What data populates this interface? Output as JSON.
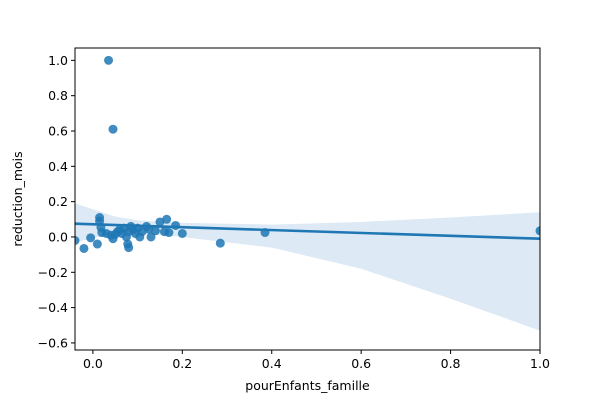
{
  "chart_data": {
    "type": "scatter",
    "title": "",
    "xlabel": "pourEnfants_famille",
    "ylabel": "reduction_mois",
    "xlim": [
      -0.04,
      1.0
    ],
    "ylim": [
      -0.64,
      1.07
    ],
    "xticks": [
      {
        "value": 0.0,
        "label": "0.0"
      },
      {
        "value": 0.2,
        "label": "0.2"
      },
      {
        "value": 0.4,
        "label": "0.4"
      },
      {
        "value": 0.6,
        "label": "0.6"
      },
      {
        "value": 0.8,
        "label": "0.8"
      },
      {
        "value": 1.0,
        "label": "1.0"
      }
    ],
    "yticks": [
      {
        "value": -0.6,
        "label": "−0.6"
      },
      {
        "value": -0.4,
        "label": "−0.4"
      },
      {
        "value": -0.2,
        "label": "−0.2"
      },
      {
        "value": 0.0,
        "label": "0.0"
      },
      {
        "value": 0.2,
        "label": "0.2"
      },
      {
        "value": 0.4,
        "label": "0.4"
      },
      {
        "value": 0.6,
        "label": "0.6"
      },
      {
        "value": 0.8,
        "label": "0.8"
      },
      {
        "value": 1.0,
        "label": "1.0"
      }
    ],
    "grid": false,
    "legend": "none",
    "point_color": "#1f77b4",
    "line_color": "#1f77b4",
    "band_color": "#c6dbef",
    "points": [
      {
        "x": -0.04,
        "y": -0.02
      },
      {
        "x": -0.02,
        "y": -0.065
      },
      {
        "x": -0.005,
        "y": -0.005
      },
      {
        "x": 0.01,
        "y": -0.04
      },
      {
        "x": 0.015,
        "y": 0.11
      },
      {
        "x": 0.015,
        "y": 0.09
      },
      {
        "x": 0.018,
        "y": 0.055
      },
      {
        "x": 0.02,
        "y": 0.025
      },
      {
        "x": 0.03,
        "y": 0.02
      },
      {
        "x": 0.035,
        "y": 1.0
      },
      {
        "x": 0.04,
        "y": 0.01
      },
      {
        "x": 0.045,
        "y": 0.61
      },
      {
        "x": 0.045,
        "y": -0.01
      },
      {
        "x": 0.05,
        "y": 0.015
      },
      {
        "x": 0.055,
        "y": 0.03
      },
      {
        "x": 0.06,
        "y": 0.04
      },
      {
        "x": 0.065,
        "y": 0.02
      },
      {
        "x": 0.07,
        "y": 0.05
      },
      {
        "x": 0.075,
        "y": 0.0
      },
      {
        "x": 0.078,
        "y": -0.04
      },
      {
        "x": 0.08,
        "y": -0.06
      },
      {
        "x": 0.08,
        "y": 0.03
      },
      {
        "x": 0.085,
        "y": 0.06
      },
      {
        "x": 0.09,
        "y": 0.04
      },
      {
        "x": 0.095,
        "y": 0.02
      },
      {
        "x": 0.1,
        "y": 0.05
      },
      {
        "x": 0.105,
        "y": 0.0
      },
      {
        "x": 0.11,
        "y": 0.03
      },
      {
        "x": 0.12,
        "y": 0.06
      },
      {
        "x": 0.125,
        "y": 0.045
      },
      {
        "x": 0.13,
        "y": 0.0
      },
      {
        "x": 0.14,
        "y": 0.035
      },
      {
        "x": 0.15,
        "y": 0.085
      },
      {
        "x": 0.16,
        "y": 0.03
      },
      {
        "x": 0.165,
        "y": 0.1
      },
      {
        "x": 0.17,
        "y": 0.025
      },
      {
        "x": 0.185,
        "y": 0.065
      },
      {
        "x": 0.2,
        "y": 0.02
      },
      {
        "x": 0.285,
        "y": -0.035
      },
      {
        "x": 0.385,
        "y": 0.025
      },
      {
        "x": 1.0,
        "y": 0.035
      }
    ],
    "regression_line": [
      {
        "x": -0.04,
        "y": 0.075
      },
      {
        "x": 1.0,
        "y": -0.01
      }
    ],
    "confidence_band": {
      "upper": [
        {
          "x": -0.04,
          "y": 0.19
        },
        {
          "x": 0.05,
          "y": 0.115
        },
        {
          "x": 0.1,
          "y": 0.095
        },
        {
          "x": 0.2,
          "y": 0.08
        },
        {
          "x": 0.4,
          "y": 0.07
        },
        {
          "x": 0.6,
          "y": 0.085
        },
        {
          "x": 0.8,
          "y": 0.11
        },
        {
          "x": 1.0,
          "y": 0.14
        }
      ],
      "lower": [
        {
          "x": -0.04,
          "y": -0.03
        },
        {
          "x": 0.05,
          "y": 0.02
        },
        {
          "x": 0.1,
          "y": 0.025
        },
        {
          "x": 0.2,
          "y": 0.0
        },
        {
          "x": 0.4,
          "y": -0.06
        },
        {
          "x": 0.6,
          "y": -0.18
        },
        {
          "x": 0.8,
          "y": -0.35
        },
        {
          "x": 1.0,
          "y": -0.53
        }
      ]
    }
  }
}
